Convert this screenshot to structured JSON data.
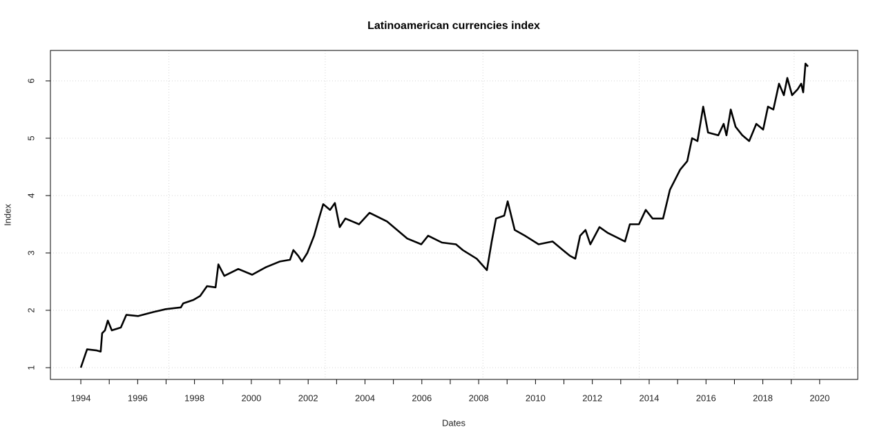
{
  "chart_data": {
    "type": "line",
    "title": "Latinoamerican currencies index",
    "xlabel": "Dates",
    "ylabel": "Index",
    "x": [
      1994.0,
      1994.22,
      1994.56,
      1994.7,
      1994.75,
      1994.85,
      1994.95,
      1995.09,
      1995.41,
      1995.6,
      1996.02,
      1996.55,
      1996.99,
      1997.52,
      1997.6,
      1997.96,
      1998.2,
      1998.44,
      1998.74,
      1998.84,
      1999.05,
      1999.54,
      2000.03,
      2000.51,
      2001.0,
      2001.36,
      2001.48,
      2001.65,
      2001.78,
      2001.97,
      2002.21,
      2002.38,
      2002.53,
      2002.77,
      2002.94,
      2003.11,
      2003.31,
      2003.79,
      2004.16,
      2004.77,
      2005.13,
      2005.49,
      2005.98,
      2006.22,
      2006.71,
      2007.2,
      2007.44,
      2007.93,
      2008.29,
      2008.46,
      2008.61,
      2008.9,
      2009.02,
      2009.27,
      2009.63,
      2010.11,
      2010.6,
      2010.96,
      2011.21,
      2011.4,
      2011.57,
      2011.76,
      2011.93,
      2012.25,
      2012.54,
      2013.15,
      2013.32,
      2013.64,
      2013.88,
      2014.12,
      2014.49,
      2014.73,
      2015.09,
      2015.34,
      2015.51,
      2015.7,
      2015.9,
      2016.07,
      2016.43,
      2016.62,
      2016.72,
      2016.87,
      2017.04,
      2017.28,
      2017.52,
      2017.77,
      2018.01,
      2018.18,
      2018.37,
      2018.57,
      2018.74,
      2018.86,
      2019.03,
      2019.22,
      2019.35,
      2019.42,
      2019.5,
      2019.59
    ],
    "series": [
      {
        "name": "Index",
        "color": "#000000",
        "values": [
          1.0,
          1.32,
          1.3,
          1.28,
          1.6,
          1.65,
          1.82,
          1.65,
          1.7,
          1.92,
          1.9,
          1.97,
          2.02,
          2.05,
          2.12,
          2.18,
          2.25,
          2.42,
          2.4,
          2.8,
          2.6,
          2.72,
          2.62,
          2.75,
          2.85,
          2.88,
          3.05,
          2.95,
          2.85,
          3.0,
          3.3,
          3.6,
          3.85,
          3.75,
          3.87,
          3.45,
          3.6,
          3.5,
          3.7,
          3.55,
          3.4,
          3.25,
          3.15,
          3.3,
          3.18,
          3.15,
          3.05,
          2.9,
          2.7,
          3.2,
          3.6,
          3.65,
          3.9,
          3.4,
          3.3,
          3.15,
          3.2,
          3.05,
          2.95,
          2.9,
          3.3,
          3.4,
          3.15,
          3.45,
          3.35,
          3.2,
          3.5,
          3.5,
          3.75,
          3.6,
          3.6,
          4.1,
          4.45,
          4.6,
          5.0,
          4.95,
          5.55,
          5.1,
          5.05,
          5.25,
          5.05,
          5.5,
          5.2,
          5.05,
          4.95,
          5.25,
          5.15,
          5.55,
          5.5,
          5.95,
          5.75,
          6.05,
          5.75,
          5.85,
          5.95,
          5.8,
          6.3,
          6.25
        ]
      }
    ],
    "xlim": [
      1992.93,
      2021.34
    ],
    "ylim": [
      0.795,
      6.53
    ],
    "xticks": [
      1994,
      1996,
      1998,
      2000,
      2002,
      2004,
      2006,
      2008,
      2010,
      2012,
      2014,
      2016,
      2018,
      2020
    ],
    "xticks_minor": [
      1995,
      1997,
      1999,
      2001,
      2003,
      2005,
      2007,
      2009,
      2011,
      2013,
      2015,
      2017,
      2019
    ],
    "yticks": [
      1,
      2,
      3,
      4,
      5,
      6
    ],
    "xgrid": [
      1997.1,
      2002.6,
      2008.15,
      2013.65,
      2019.1
    ],
    "grid": true
  }
}
